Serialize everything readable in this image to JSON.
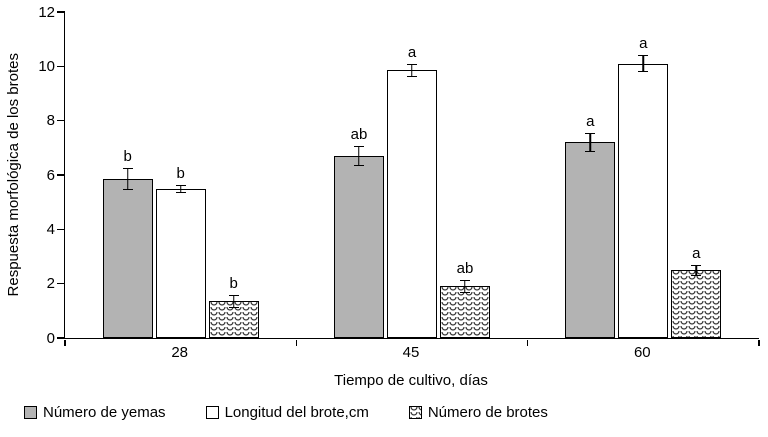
{
  "chart_data": {
    "type": "bar",
    "title": "",
    "categories": [
      "28",
      "45",
      "60"
    ],
    "series": [
      {
        "name": "Número de yemas",
        "values": [
          5.85,
          6.7,
          7.2
        ],
        "errors": [
          0.4,
          0.35,
          0.35
        ],
        "labels": [
          "b",
          "ab",
          "a"
        ],
        "fill": "#b3b3b3",
        "pattern": "solid"
      },
      {
        "name": "Longitud del brote,cm",
        "values": [
          5.5,
          9.85,
          10.1
        ],
        "errors": [
          0.15,
          0.25,
          0.3
        ],
        "labels": [
          "b",
          "a",
          "a"
        ],
        "fill": "#ffffff",
        "pattern": "solid"
      },
      {
        "name": "Número de brotes",
        "values": [
          1.35,
          1.9,
          2.5
        ],
        "errors": [
          0.25,
          0.25,
          0.2
        ],
        "labels": [
          "b",
          "ab",
          "a"
        ],
        "fill": "#ffffff",
        "pattern": "wave"
      }
    ],
    "xlabel": "Tiempo de cultivo, días",
    "ylabel": "Respuesta morfológica de los brotes",
    "ylim": [
      0,
      12
    ],
    "yticks": [
      0,
      2,
      4,
      6,
      8,
      10,
      12
    ],
    "grid": false,
    "legend_position": "bottom"
  }
}
